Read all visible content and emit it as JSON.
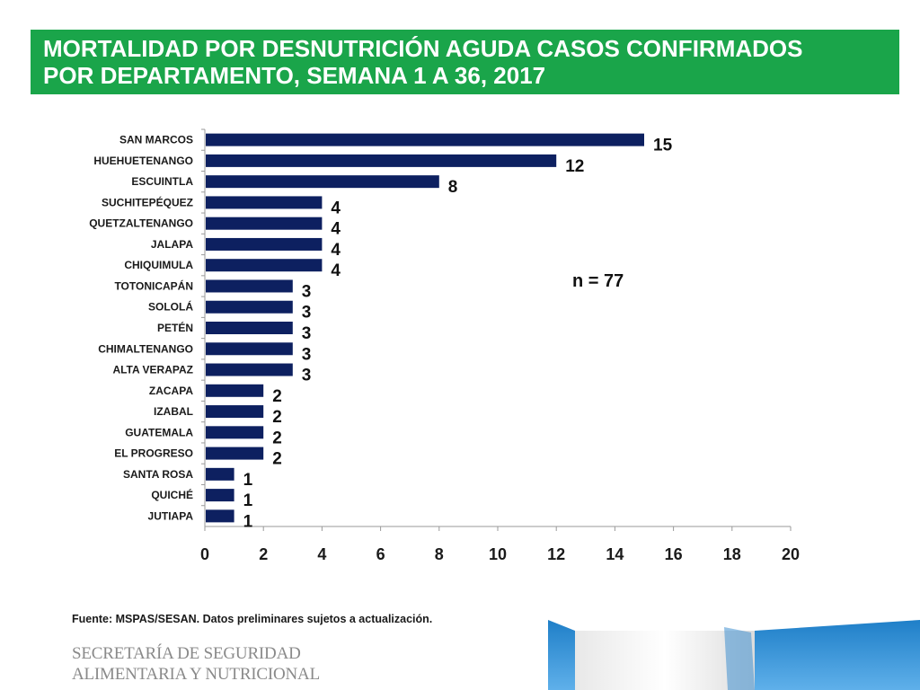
{
  "header": {
    "title_line1": "MORTALIDAD POR DESNUTRICIÓN AGUDA CASOS CONFIRMADOS",
    "title_line2": "POR DEPARTAMENTO, SEMANA 1 A 36, 2017"
  },
  "annotation": "n = 77",
  "footer": {
    "source": "Fuente:  MSPAS/SESAN. Datos preliminares sujetos a actualización.",
    "logo_line1": "SECRETARÍA DE SEGURIDAD",
    "logo_line2": "ALIMENTARIA Y NUTRICIONAL"
  },
  "colors": {
    "banner": "#1aa54a",
    "bar": "#0d2060",
    "axis": "#9a9a9a",
    "deco_blue": "#2a8fd6"
  },
  "chart_data": {
    "type": "bar",
    "orientation": "horizontal",
    "title": "MORTALIDAD POR DESNUTRICIÓN AGUDA CASOS CONFIRMADOS POR DEPARTAMENTO, SEMANA 1 A 36, 2017",
    "categories": [
      "SAN MARCOS",
      "HUEHUETENANGO",
      "ESCUINTLA",
      "SUCHITEPÉQUEZ",
      "QUETZALTENANGO",
      "JALAPA",
      "CHIQUIMULA",
      "TOTONICAPÁN",
      "SOLOLÁ",
      "PETÉN",
      "CHIMALTENANGO",
      "ALTA VERAPAZ",
      "ZACAPA",
      "IZABAL",
      "GUATEMALA",
      "EL PROGRESO",
      "SANTA ROSA",
      "QUICHÉ",
      "JUTIAPA"
    ],
    "values": [
      15,
      12,
      8,
      4,
      4,
      4,
      4,
      3,
      3,
      3,
      3,
      3,
      2,
      2,
      2,
      2,
      1,
      1,
      1
    ],
    "xlim": [
      0,
      20
    ],
    "xticks": [
      0,
      2,
      4,
      6,
      8,
      10,
      12,
      14,
      16,
      18,
      20
    ],
    "xlabel": "",
    "ylabel": "",
    "grid": false,
    "legend": "none",
    "data_labels": true
  }
}
